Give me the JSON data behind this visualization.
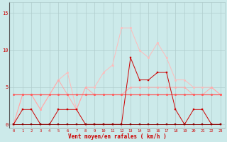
{
  "x": [
    0,
    1,
    2,
    3,
    4,
    5,
    6,
    7,
    8,
    9,
    10,
    11,
    12,
    13,
    14,
    15,
    16,
    17,
    18,
    19,
    20,
    21,
    22,
    23
  ],
  "line_dark1": [
    0,
    2,
    2,
    0,
    0,
    2,
    2,
    2,
    0,
    0,
    0,
    0,
    0,
    9,
    6,
    6,
    7,
    7,
    2,
    0,
    2,
    2,
    0,
    0
  ],
  "line_dark2": [
    0,
    0,
    0,
    0,
    0,
    0,
    0,
    0,
    0,
    0,
    0,
    0,
    0,
    0,
    0,
    0,
    0,
    0,
    0,
    0,
    0,
    0,
    0,
    0
  ],
  "line_mid": [
    4,
    4,
    4,
    4,
    4,
    4,
    4,
    4,
    4,
    4,
    4,
    4,
    4,
    4,
    4,
    4,
    4,
    4,
    4,
    4,
    4,
    4,
    4,
    4
  ],
  "line_light1": [
    0,
    4,
    4,
    2,
    4,
    6,
    4,
    2,
    5,
    4,
    4,
    4,
    4,
    5,
    5,
    5,
    5,
    5,
    5,
    5,
    4,
    4,
    5,
    4
  ],
  "line_light2": [
    0,
    4,
    4,
    2,
    4,
    6,
    7,
    2,
    5,
    5,
    7,
    8,
    13,
    13,
    10,
    9,
    11,
    9,
    6,
    6,
    5,
    5,
    5,
    4
  ],
  "background_color": "#cceaea",
  "grid_color": "#b0cccc",
  "line_dark1_color": "#cc0000",
  "line_dark2_color": "#880000",
  "line_mid_color": "#ff5555",
  "line_light1_color": "#ffaaaa",
  "line_light2_color": "#ffbbbb",
  "ylabel_ticks": [
    0,
    5,
    10,
    15
  ],
  "xtick_labels": [
    "0",
    "1",
    "2",
    "3",
    "4",
    "5",
    "6",
    "7",
    "8",
    "9",
    "10",
    "11",
    "12",
    "13",
    "14",
    "15",
    "16",
    "17",
    "18",
    "19",
    "20",
    "21",
    "22",
    "23"
  ],
  "xlabel": "Vent moyen/en rafales ( km/h )",
  "ylim": [
    -0.5,
    16.5
  ],
  "xlim": [
    -0.5,
    23.5
  ]
}
